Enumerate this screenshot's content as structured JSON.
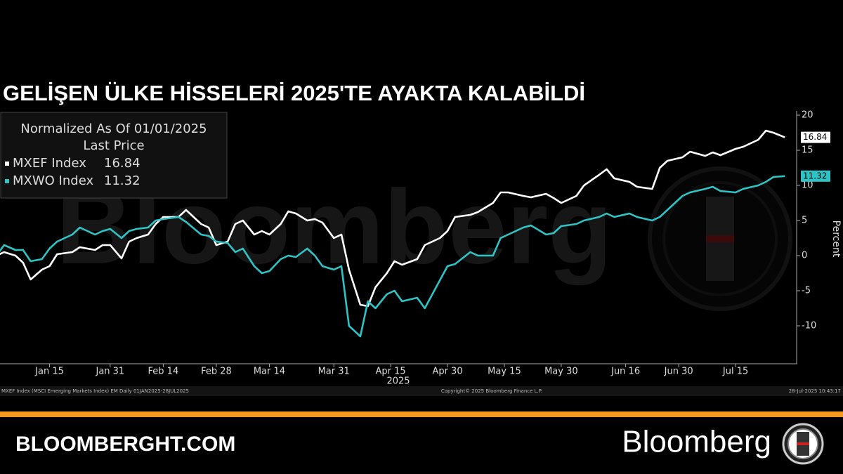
{
  "page": {
    "site": "BLOOMBERGHT.COM",
    "brand": "Bloomberg",
    "footer_left": "MXEF Index (MSCI Emerging Markets Index) EM  Daily 01JAN2025-28JUL2025",
    "footer_center": "Copyright© 2025 Bloomberg Finance L.P.",
    "footer_right": "28-Jul-2025 10:43:17"
  },
  "chart_data": {
    "type": "line",
    "title": "GELİŞEN ÜLKE HİSSELERİ 2025'TE AYAKTA KALABİLDİ",
    "watermark": "Bloomberg",
    "legend_title": "Normalized As Of 01/01/2025",
    "legend_subtitle": "Last Price",
    "y_label": "Percent",
    "x_year_label": "2025",
    "legend": "upper left",
    "grid": false,
    "x": [
      "2025-01-01",
      "2025-01-03",
      "2025-01-06",
      "2025-01-08",
      "2025-01-10",
      "2025-01-13",
      "2025-01-15",
      "2025-01-17",
      "2025-01-21",
      "2025-01-23",
      "2025-01-27",
      "2025-01-29",
      "2025-01-31",
      "2025-02-03",
      "2025-02-05",
      "2025-02-07",
      "2025-02-10",
      "2025-02-12",
      "2025-02-14",
      "2025-02-18",
      "2025-02-20",
      "2025-02-24",
      "2025-02-26",
      "2025-02-28",
      "2025-03-03",
      "2025-03-05",
      "2025-03-07",
      "2025-03-10",
      "2025-03-12",
      "2025-03-14",
      "2025-03-17",
      "2025-03-19",
      "2025-03-21",
      "2025-03-24",
      "2025-03-26",
      "2025-03-28",
      "2025-03-31",
      "2025-04-02",
      "2025-04-04",
      "2025-04-07",
      "2025-04-09",
      "2025-04-11",
      "2025-04-14",
      "2025-04-16",
      "2025-04-18",
      "2025-04-22",
      "2025-04-24",
      "2025-04-28",
      "2025-04-30",
      "2025-05-02",
      "2025-05-06",
      "2025-05-08",
      "2025-05-12",
      "2025-05-14",
      "2025-05-16",
      "2025-05-20",
      "2025-05-22",
      "2025-05-26",
      "2025-05-28",
      "2025-05-30",
      "2025-06-03",
      "2025-06-05",
      "2025-06-09",
      "2025-06-11",
      "2025-06-13",
      "2025-06-17",
      "2025-06-19",
      "2025-06-23",
      "2025-06-25",
      "2025-06-27",
      "2025-07-01",
      "2025-07-03",
      "2025-07-07",
      "2025-07-09",
      "2025-07-11",
      "2025-07-15",
      "2025-07-17",
      "2025-07-21",
      "2025-07-23",
      "2025-07-25",
      "2025-07-28"
    ],
    "series": [
      {
        "name": "MXEF Index",
        "color": "#ffffff",
        "values": [
          0,
          0.5,
          0,
          -1,
          -3.4,
          -2,
          -1.5,
          0.2,
          0.5,
          1.2,
          0.8,
          1.5,
          1.5,
          -0.4,
          2,
          2.5,
          3,
          4.5,
          5.5,
          5.5,
          6.5,
          4.5,
          4,
          1.5,
          2,
          4.5,
          5,
          3,
          3.5,
          3,
          4.5,
          6.3,
          6,
          5,
          5.2,
          4.7,
          2.5,
          3,
          -2,
          -7,
          -7.2,
          -4.5,
          -2.5,
          -0.8,
          -1.3,
          -0.5,
          1.5,
          2.5,
          3.5,
          5.5,
          5.8,
          6.2,
          7.5,
          9,
          9,
          8.5,
          8.3,
          8.8,
          8.2,
          7.5,
          8.5,
          10,
          11.5,
          12.3,
          11,
          10.5,
          9.8,
          9.5,
          12.5,
          13.5,
          14,
          14.8,
          14.2,
          14.7,
          14.3,
          15.2,
          15.5,
          16.5,
          17.8,
          17.5,
          16.84
        ]
      },
      {
        "name": "MXWO Index",
        "color": "#2ec4c6",
        "values": [
          0,
          1.5,
          0.8,
          0.8,
          -0.8,
          -0.5,
          1,
          2,
          3,
          4,
          3,
          3.5,
          3.8,
          2.5,
          3.5,
          3.8,
          4,
          5,
          5.2,
          5.5,
          4.8,
          3,
          2.8,
          2,
          1.8,
          0.5,
          1,
          -1.5,
          -2.5,
          -2.2,
          -0.5,
          0,
          -0.2,
          1,
          0,
          -1.5,
          -2,
          -1.5,
          -10,
          -11.5,
          -6.5,
          -7.5,
          -5.5,
          -5,
          -6.5,
          -6,
          -7.5,
          -3.5,
          -1.5,
          -1.2,
          0.5,
          0,
          0,
          2.5,
          3,
          4,
          4.3,
          3,
          3.2,
          4.2,
          4.5,
          5,
          5.5,
          6,
          5.5,
          6,
          5.5,
          5,
          5.5,
          6.5,
          8.5,
          9,
          9.5,
          9.8,
          9.2,
          9,
          9.5,
          10,
          10.5,
          11.2,
          11.32
        ]
      }
    ],
    "xlim": [
      "2025-01-01",
      "2025-07-30"
    ],
    "xticks": [
      {
        "value": "2025-01-15",
        "label": "Jan 15"
      },
      {
        "value": "2025-01-31",
        "label": "Jan 31"
      },
      {
        "value": "2025-02-14",
        "label": "Feb 14"
      },
      {
        "value": "2025-02-28",
        "label": "Feb 28"
      },
      {
        "value": "2025-03-14",
        "label": "Mar 14"
      },
      {
        "value": "2025-03-31",
        "label": "Mar 31"
      },
      {
        "value": "2025-04-15",
        "label": "Apr 15"
      },
      {
        "value": "2025-04-30",
        "label": "Apr 30"
      },
      {
        "value": "2025-05-15",
        "label": "May 15"
      },
      {
        "value": "2025-05-30",
        "label": "May 30"
      },
      {
        "value": "2025-06-16",
        "label": "Jun 16"
      },
      {
        "value": "2025-06-30",
        "label": "Jun 30"
      },
      {
        "value": "2025-07-15",
        "label": "Jul 15"
      }
    ],
    "ylim": [
      -15.4,
      20.6
    ],
    "yticks": [
      20,
      15,
      10,
      5,
      0,
      -5,
      -10
    ]
  }
}
